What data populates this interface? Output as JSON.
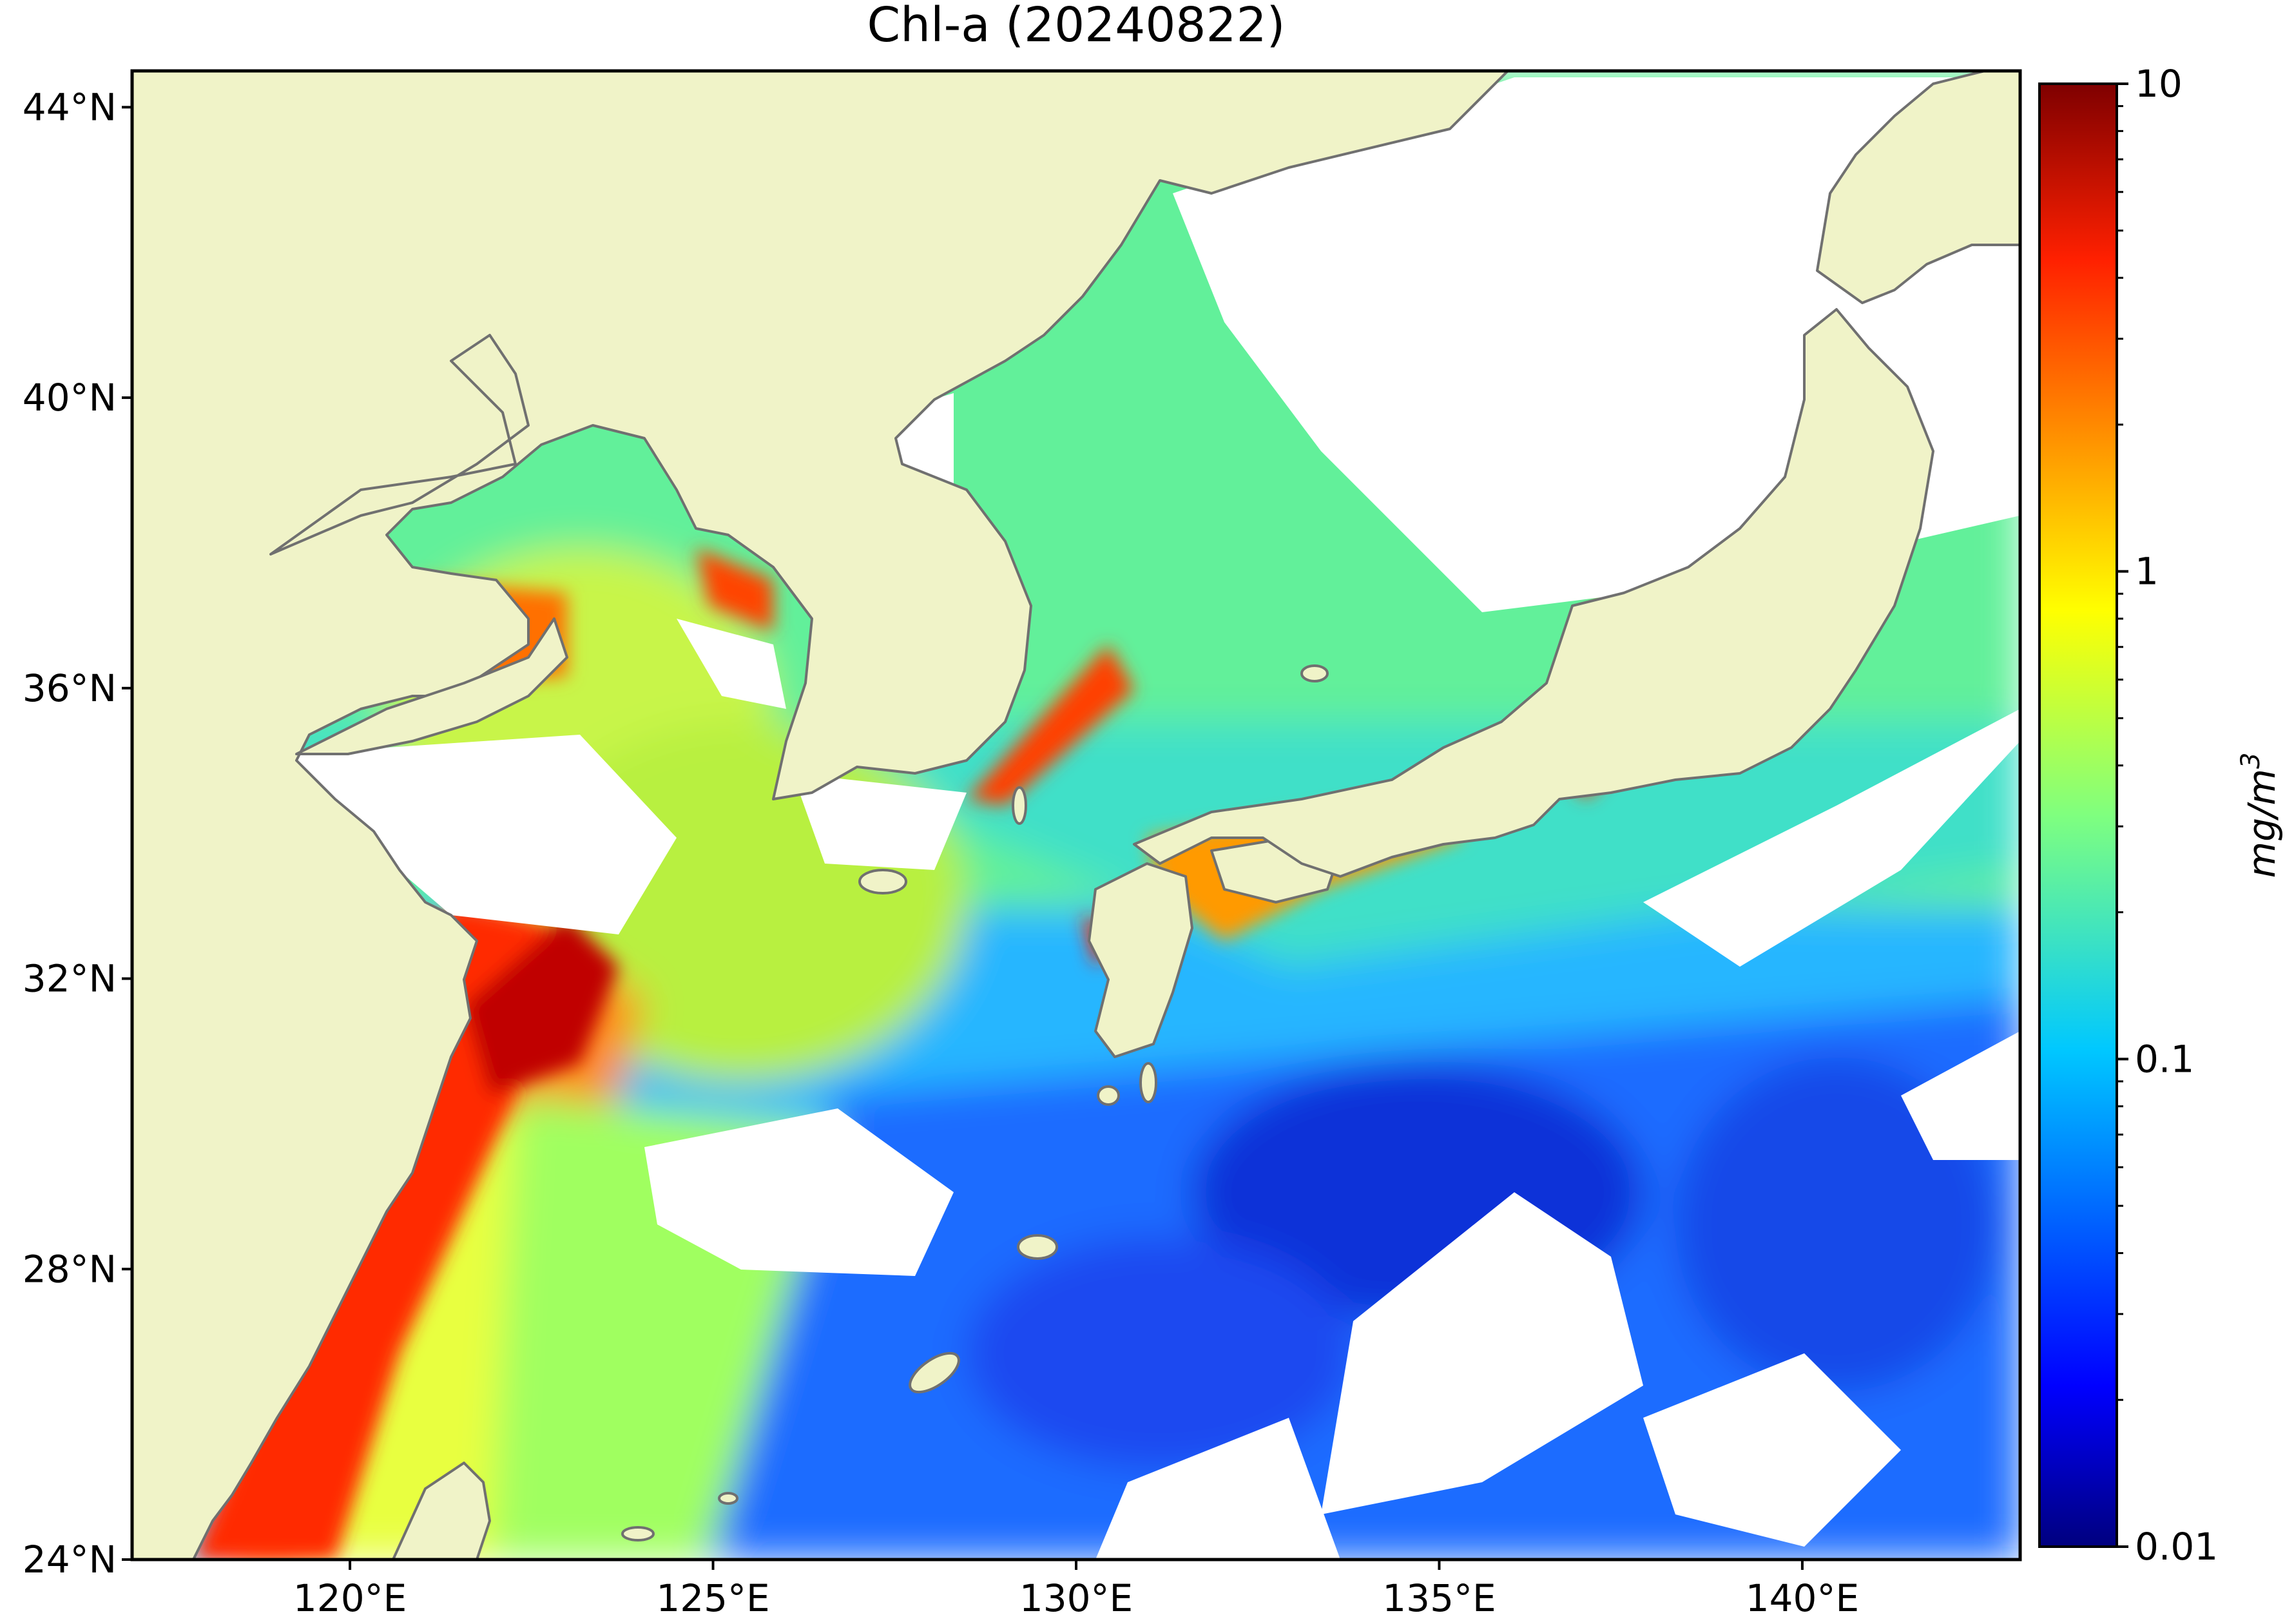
{
  "title": "Chl-a (20240822)",
  "map": {
    "lon_range": [
      117,
      143
    ],
    "lat_range": [
      24,
      44.5
    ],
    "lat_ticks": [
      {
        "value": 44,
        "label": "44°N"
      },
      {
        "value": 40,
        "label": "40°N"
      },
      {
        "value": 36,
        "label": "36°N"
      },
      {
        "value": 32,
        "label": "32°N"
      },
      {
        "value": 28,
        "label": "28°N"
      },
      {
        "value": 24,
        "label": "24°N"
      }
    ],
    "lon_ticks": [
      {
        "value": 120,
        "label": "120°E"
      },
      {
        "value": 125,
        "label": "125°E"
      },
      {
        "value": 130,
        "label": "130°E"
      },
      {
        "value": 135,
        "label": "135°E"
      },
      {
        "value": 140,
        "label": "140°E"
      }
    ],
    "colors": {
      "land": "#f0f3c8",
      "coast": "#707070",
      "no_data": "#ffffff"
    }
  },
  "colorbar": {
    "label": "mg/m",
    "label_sup": "3",
    "scale": "log",
    "range": [
      0.01,
      10
    ],
    "ticks": [
      {
        "value": 10,
        "label": "10"
      },
      {
        "value": 1,
        "label": "1"
      },
      {
        "value": 0.1,
        "label": "0.1"
      },
      {
        "value": 0.01,
        "label": "0.01"
      }
    ],
    "colormap": "jet",
    "colors": [
      "#00007f",
      "#0000ff",
      "#007fff",
      "#00ffff",
      "#7fff7f",
      "#ffff00",
      "#ff7f00",
      "#ff0000",
      "#7f0000"
    ]
  }
}
